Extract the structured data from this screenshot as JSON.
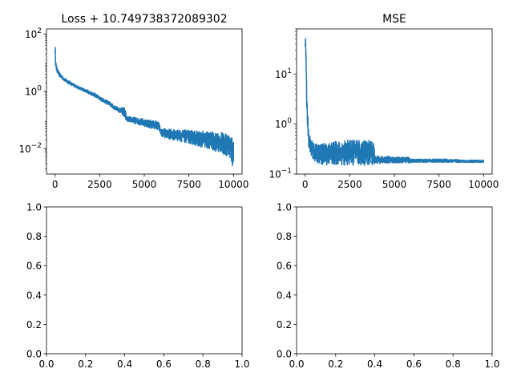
{
  "figure": {
    "background": "#ffffff",
    "line_color": "#1f77b4"
  },
  "chart_data": [
    {
      "type": "line",
      "title": "Loss + 10.749738372089302",
      "yscale": "log",
      "xlim": [
        -480,
        10480
      ],
      "ylim": [
        0.0013,
        150
      ],
      "xticks": [
        0,
        2500,
        5000,
        7500,
        10000
      ],
      "xtick_labels": [
        "0",
        "2500",
        "5000",
        "7500",
        "10000"
      ],
      "yticks": [
        0.01,
        1,
        100
      ],
      "ytick_labels": [
        "10^-2",
        "10^0",
        "10^2"
      ],
      "series": [
        {
          "x": [
            0,
            10,
            20,
            30,
            50,
            80,
            120,
            200,
            300,
            500,
            700,
            1000,
            1300,
            1600,
            2000,
            2300,
            2600,
            3000,
            3300,
            3600,
            3800,
            3900,
            4000,
            4200,
            4600,
            5000,
            5400,
            5800,
            5900,
            6000,
            6500,
            7000,
            7500,
            8000,
            8500,
            8800,
            9000,
            9300,
            9500,
            9700,
            9850,
            9950,
            10000
          ],
          "upper": [
            60,
            30,
            20,
            14,
            10,
            8,
            6.5,
            5,
            4,
            3,
            2.5,
            1.9,
            1.5,
            1.25,
            1.0,
            0.8,
            0.6,
            0.45,
            0.33,
            0.25,
            0.28,
            0.28,
            0.13,
            0.13,
            0.12,
            0.11,
            0.1,
            0.09,
            0.05,
            0.05,
            0.048,
            0.046,
            0.044,
            0.042,
            0.04,
            0.038,
            0.037,
            0.036,
            0.035,
            0.034,
            0.033,
            0.032,
            0.031
          ],
          "lower": [
            20,
            15,
            10,
            8,
            6,
            5,
            4.5,
            3.5,
            3,
            2.3,
            1.9,
            1.5,
            1.2,
            1.0,
            0.75,
            0.6,
            0.45,
            0.32,
            0.24,
            0.18,
            0.15,
            0.1,
            0.09,
            0.085,
            0.07,
            0.06,
            0.05,
            0.045,
            0.035,
            0.025,
            0.02,
            0.018,
            0.015,
            0.012,
            0.01,
            0.009,
            0.008,
            0.007,
            0.006,
            0.005,
            0.003,
            0.002,
            0.0012
          ]
        }
      ]
    },
    {
      "type": "line",
      "title": "MSE",
      "yscale": "log",
      "xlim": [
        -480,
        10480
      ],
      "ylim": [
        0.1,
        80
      ],
      "xticks": [
        0,
        2500,
        5000,
        7500,
        10000
      ],
      "xtick_labels": [
        "0",
        "2500",
        "5000",
        "7500",
        "10000"
      ],
      "yticks": [
        0.1,
        1,
        10
      ],
      "ytick_labels": [
        "10^-1",
        "10^0",
        "10^1"
      ],
      "series": [
        {
          "x": [
            0,
            10,
            20,
            40,
            60,
            80,
            100,
            150,
            200,
            300,
            500,
            800,
            1200,
            1600,
            2000,
            2500,
            3000,
            3500,
            3850,
            3900,
            4500,
            5000,
            5500,
            5800,
            5900,
            6500,
            7000,
            8000,
            9000,
            10000
          ],
          "upper": [
            55,
            60,
            58,
            40,
            15,
            6,
            3,
            1.5,
            0.8,
            0.5,
            0.4,
            0.4,
            0.42,
            0.45,
            0.47,
            0.48,
            0.48,
            0.48,
            0.48,
            0.23,
            0.23,
            0.22,
            0.22,
            0.22,
            0.2,
            0.2,
            0.2,
            0.2,
            0.19,
            0.19
          ],
          "lower": [
            30,
            40,
            35,
            20,
            8,
            3,
            1.2,
            0.6,
            0.35,
            0.25,
            0.18,
            0.16,
            0.15,
            0.15,
            0.15,
            0.15,
            0.15,
            0.15,
            0.15,
            0.16,
            0.165,
            0.165,
            0.165,
            0.165,
            0.17,
            0.17,
            0.17,
            0.17,
            0.17,
            0.17
          ]
        }
      ]
    },
    {
      "type": "line",
      "title": "",
      "yscale": "linear",
      "xlim": [
        0,
        1
      ],
      "ylim": [
        0,
        1
      ],
      "xticks": [
        0,
        0.2,
        0.4,
        0.6,
        0.8,
        1.0
      ],
      "xtick_labels": [
        "0.0",
        "0.2",
        "0.4",
        "0.6",
        "0.8",
        "1.0"
      ],
      "yticks": [
        0,
        0.2,
        0.4,
        0.6,
        0.8,
        1.0
      ],
      "ytick_labels": [
        "0.0",
        "0.2",
        "0.4",
        "0.6",
        "0.8",
        "1.0"
      ],
      "series": []
    },
    {
      "type": "line",
      "title": "",
      "yscale": "linear",
      "xlim": [
        0,
        1
      ],
      "ylim": [
        0,
        1
      ],
      "xticks": [
        0,
        0.2,
        0.4,
        0.6,
        0.8,
        1.0
      ],
      "xtick_labels": [
        "0.0",
        "0.2",
        "0.4",
        "0.6",
        "0.8",
        "1.0"
      ],
      "yticks": [
        0,
        0.2,
        0.4,
        0.6,
        0.8,
        1.0
      ],
      "ytick_labels": [
        "0.0",
        "0.2",
        "0.4",
        "0.6",
        "0.8",
        "1.0"
      ],
      "series": []
    }
  ]
}
